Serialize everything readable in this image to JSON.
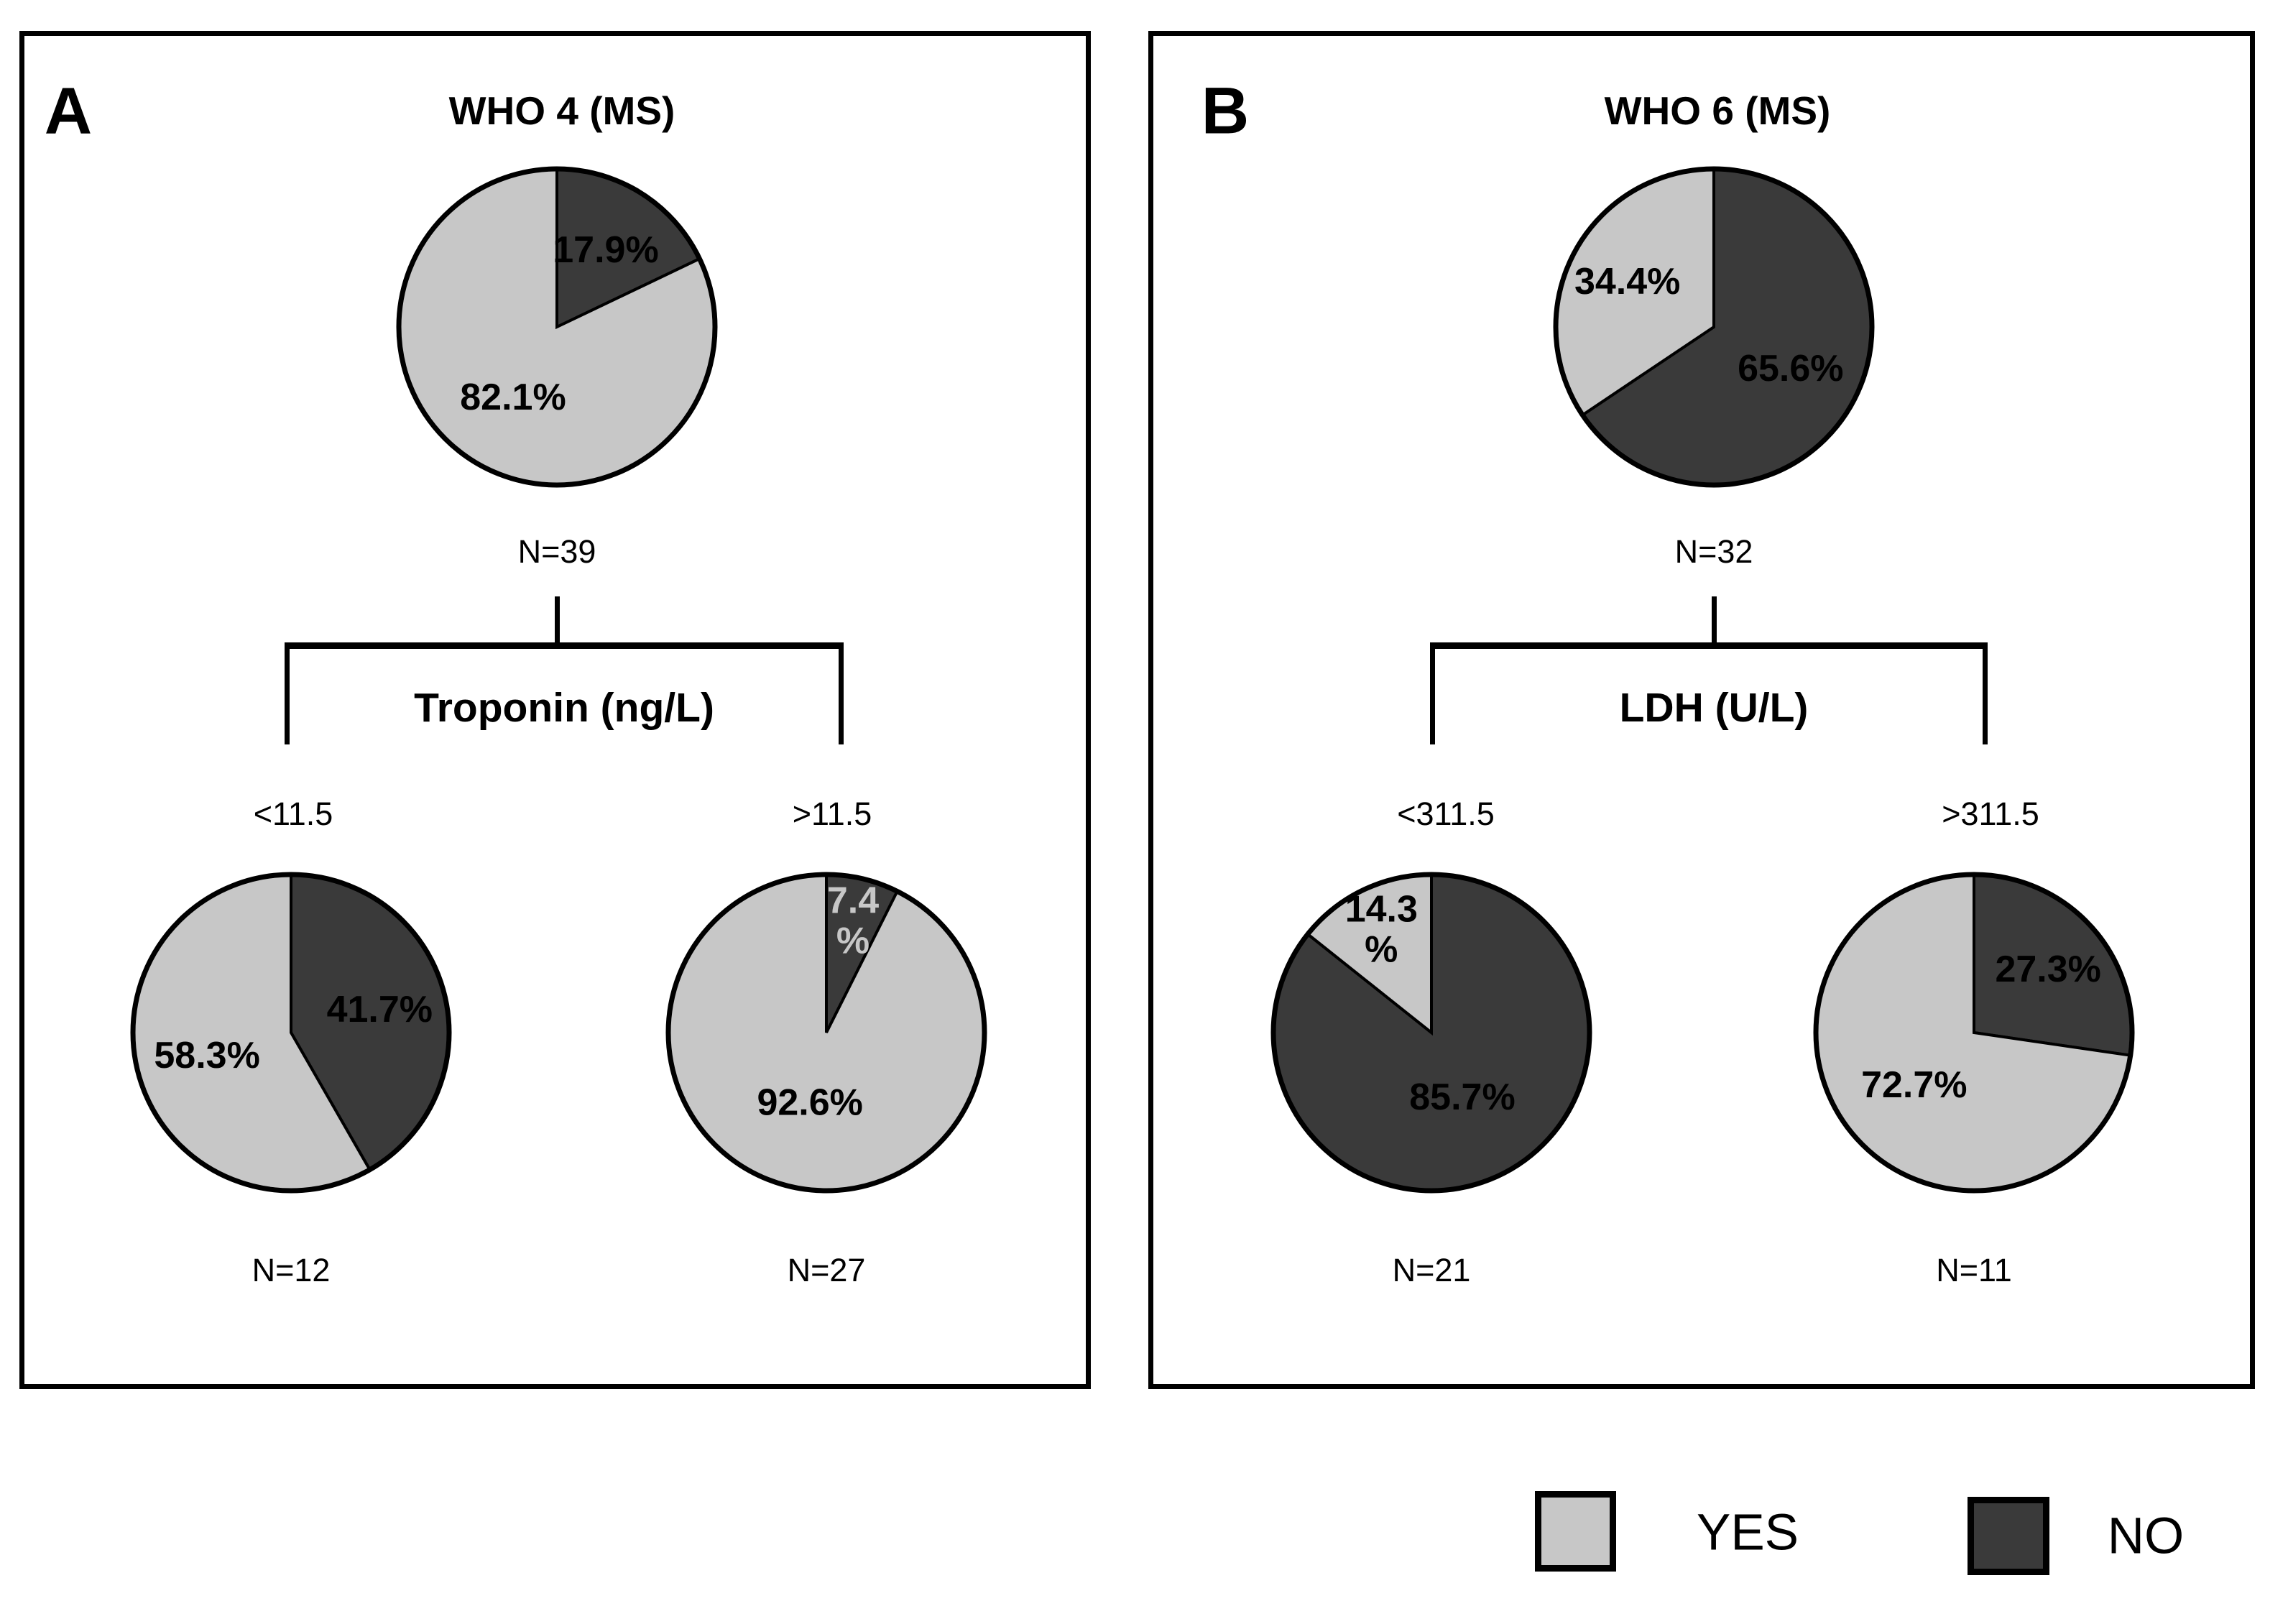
{
  "colors": {
    "YES": "#c7c7c7",
    "NO": "#3a3a3a",
    "outline": "#000000"
  },
  "panels": [
    {
      "letter": "A",
      "title": "WHO 4 (MS)",
      "root_n": "N=39",
      "split_variable": "Troponin (ng/L)",
      "branches": [
        {
          "condition": "<11.5",
          "n": "N=12"
        },
        {
          "condition": ">11.5",
          "n": "N=27"
        }
      ]
    },
    {
      "letter": "B",
      "title": "WHO 6 (MS)",
      "root_n": "N=32",
      "split_variable": "LDH (U/L)",
      "branches": [
        {
          "condition": "<311.5",
          "n": "N=21"
        },
        {
          "condition": ">311.5",
          "n": "N=11"
        }
      ]
    }
  ],
  "legend": {
    "items": [
      {
        "label": "YES",
        "category": "YES"
      },
      {
        "label": "NO",
        "category": "NO"
      }
    ]
  },
  "chart_data": [
    {
      "type": "pie",
      "panel": "A",
      "position": "root",
      "title": "WHO 4 (MS)",
      "n": 39,
      "slices": [
        {
          "category": "NO",
          "pct": 17.9,
          "label_lines": [
            "17.9%"
          ],
          "label_color": "#000000",
          "label_r": 0.58
        },
        {
          "category": "YES",
          "pct": 82.1,
          "label_lines": [
            "82.1%"
          ],
          "label_color": "#000000",
          "label_r": 0.52
        }
      ]
    },
    {
      "type": "pie",
      "panel": "A",
      "position": "branch-left",
      "branch": "<11.5",
      "n": 12,
      "slices": [
        {
          "category": "NO",
          "pct": 41.7,
          "label_lines": [
            "41.7%"
          ],
          "label_color": "#000000",
          "label_r": 0.58
        },
        {
          "category": "YES",
          "pct": 58.3,
          "label_lines": [
            "58.3%"
          ],
          "label_color": "#000000",
          "label_r": 0.55
        }
      ]
    },
    {
      "type": "pie",
      "panel": "A",
      "position": "branch-right",
      "branch": ">11.5",
      "n": 27,
      "slices": [
        {
          "category": "NO",
          "pct": 7.4,
          "label_lines": [
            "7.4",
            "%"
          ],
          "label_color": "#c7c7c7",
          "label_r": 0.73
        },
        {
          "category": "YES",
          "pct": 92.6,
          "label_lines": [
            "92.6%"
          ],
          "label_color": "#000000",
          "label_r": 0.45
        }
      ]
    },
    {
      "type": "pie",
      "panel": "B",
      "position": "root",
      "title": "WHO 6 (MS)",
      "n": 32,
      "slices": [
        {
          "category": "NO",
          "pct": 65.6,
          "label_lines": [
            "65.6%"
          ],
          "label_color": "#000000",
          "label_r": 0.55
        },
        {
          "category": "YES",
          "pct": 34.4,
          "label_lines": [
            "34.4%"
          ],
          "label_color": "#000000",
          "label_r": 0.62
        }
      ]
    },
    {
      "type": "pie",
      "panel": "B",
      "position": "branch-left",
      "branch": "<311.5",
      "n": 21,
      "slices": [
        {
          "category": "NO",
          "pct": 85.7,
          "label_lines": [
            "85.7%"
          ],
          "label_color": "#000000",
          "label_r": 0.45
        },
        {
          "category": "YES",
          "pct": 14.3,
          "label_lines": [
            "14.3",
            "%"
          ],
          "label_color": "#000000",
          "label_r": 0.73
        }
      ]
    },
    {
      "type": "pie",
      "panel": "B",
      "position": "branch-right",
      "branch": ">311.5",
      "n": 11,
      "slices": [
        {
          "category": "NO",
          "pct": 27.3,
          "label_lines": [
            "27.3%"
          ],
          "label_color": "#000000",
          "label_r": 0.62
        },
        {
          "category": "YES",
          "pct": 72.7,
          "label_lines": [
            "72.7%"
          ],
          "label_color": "#000000",
          "label_r": 0.5
        }
      ]
    }
  ]
}
